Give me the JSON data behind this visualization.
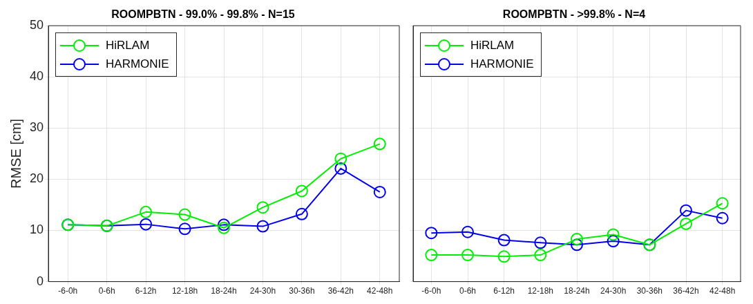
{
  "chart_data": [
    {
      "type": "line",
      "title": "ROOMPBTN - 99.0% - 99.8% - N=15",
      "ylabel": "RMSE [cm]",
      "categories": [
        "-6-0h",
        "0-6h",
        "6-12h",
        "12-18h",
        "18-24h",
        "24-30h",
        "30-36h",
        "36-42h",
        "42-48h"
      ],
      "series": [
        {
          "name": "HiRLAM",
          "color": "#00ee00",
          "values": [
            11.1,
            10.9,
            13.6,
            13.1,
            10.5,
            14.5,
            17.7,
            24.0,
            26.9
          ]
        },
        {
          "name": "HARMONIE",
          "color": "#0000ee",
          "values": [
            11.1,
            10.9,
            11.2,
            10.3,
            11.1,
            10.8,
            13.2,
            22.1,
            17.5
          ]
        }
      ],
      "ylim": [
        0,
        50
      ],
      "yticks": [
        0,
        10,
        20,
        30,
        40,
        50
      ],
      "grid": true,
      "legend": "top left",
      "marker": "circle",
      "line_style": "solid"
    },
    {
      "type": "line",
      "title": "ROOMPBTN - >99.8% - N=4",
      "categories": [
        "-6-0h",
        "0-6h",
        "6-12h",
        "12-18h",
        "18-24h",
        "24-30h",
        "30-36h",
        "36-42h",
        "42-48h"
      ],
      "series": [
        {
          "name": "HiRLAM",
          "color": "#00ee00",
          "values": [
            5.2,
            5.2,
            4.9,
            5.2,
            8.3,
            9.2,
            7.2,
            11.3,
            15.3
          ]
        },
        {
          "name": "HARMONIE",
          "color": "#0000ee",
          "values": [
            9.5,
            9.7,
            8.1,
            7.6,
            7.2,
            7.9,
            7.2,
            13.9,
            12.4
          ]
        }
      ],
      "ylim": [
        0,
        50
      ],
      "yticks": [
        0,
        10,
        20,
        30,
        40,
        50
      ],
      "grid": true,
      "legend": "top left",
      "marker": "circle",
      "line_style": "solid",
      "tick_labels": "x"
    }
  ]
}
